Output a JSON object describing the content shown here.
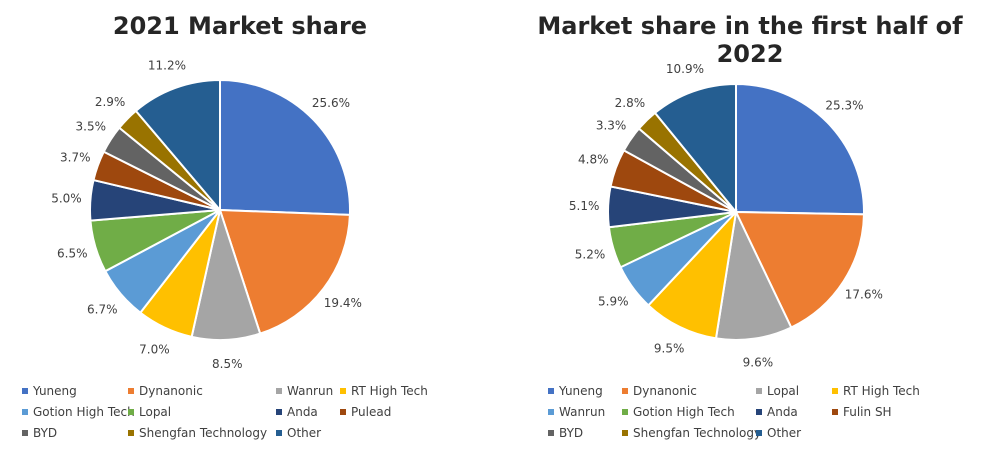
{
  "chart_data": [
    {
      "type": "pie",
      "title": "2021 Market share",
      "series": [
        {
          "name": "Yuneng",
          "value": 25.6,
          "label": "25.6%",
          "color": "#4472C4"
        },
        {
          "name": "Dynanonic",
          "value": 19.4,
          "label": "19.4%",
          "color": "#ED7D31"
        },
        {
          "name": "Wanrun",
          "value": 8.5,
          "label": "8.5%",
          "color": "#A5A5A5"
        },
        {
          "name": "RT High Tech",
          "value": 7.0,
          "label": "7.0%",
          "color": "#FFC000"
        },
        {
          "name": "Gotion High Tech",
          "value": 6.7,
          "label": "6.7%",
          "color": "#5B9BD5"
        },
        {
          "name": "Lopal",
          "value": 6.5,
          "label": "6.5%",
          "color": "#70AD47"
        },
        {
          "name": "Anda",
          "value": 5.0,
          "label": "5.0%",
          "color": "#264478"
        },
        {
          "name": "Pulead",
          "value": 3.7,
          "label": "3.7%",
          "color": "#9E480E"
        },
        {
          "name": "BYD",
          "value": 3.5,
          "label": "3.5%",
          "color": "#636363"
        },
        {
          "name": "Shengfan Technology",
          "value": 2.9,
          "label": "2.9%",
          "color": "#997300"
        },
        {
          "name": "Other",
          "value": 11.2,
          "label": "11.2%",
          "color": "#255E91"
        }
      ],
      "legend_position": "bottom"
    },
    {
      "type": "pie",
      "title": "Market share in the first half of 2022",
      "series": [
        {
          "name": "Yuneng",
          "value": 25.3,
          "label": "25.3%",
          "color": "#4472C4"
        },
        {
          "name": "Dynanonic",
          "value": 17.6,
          "label": "17.6%",
          "color": "#ED7D31"
        },
        {
          "name": "Lopal",
          "value": 9.6,
          "label": "9.6%",
          "color": "#A5A5A5"
        },
        {
          "name": "RT High Tech",
          "value": 9.5,
          "label": "9.5%",
          "color": "#FFC000"
        },
        {
          "name": "Wanrun",
          "value": 5.9,
          "label": "5.9%",
          "color": "#5B9BD5"
        },
        {
          "name": "Gotion High Tech",
          "value": 5.2,
          "label": "5.2%",
          "color": "#70AD47"
        },
        {
          "name": "Anda",
          "value": 5.1,
          "label": "5.1%",
          "color": "#264478"
        },
        {
          "name": "Fulin SH",
          "value": 4.8,
          "label": "4.8%",
          "color": "#9E480E"
        },
        {
          "name": "BYD",
          "value": 3.3,
          "label": "3.3%",
          "color": "#636363"
        },
        {
          "name": "Shengfan Technology",
          "value": 2.8,
          "label": "2.8%",
          "color": "#997300"
        },
        {
          "name": "Other",
          "value": 10.9,
          "label": "10.9%",
          "color": "#255E91"
        }
      ],
      "legend_position": "bottom"
    }
  ]
}
